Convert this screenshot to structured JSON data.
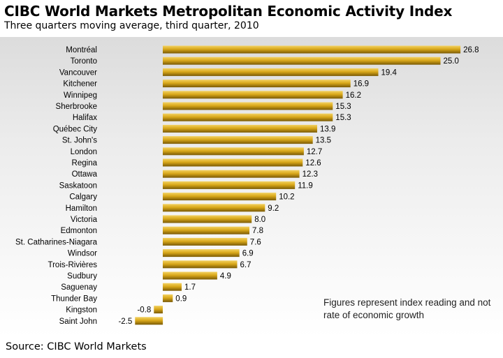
{
  "chart_data": {
    "type": "bar",
    "orientation": "horizontal",
    "title": "CIBC World Markets Metropolitan Economic Activity Index",
    "subtitle": "Three quarters moving average, third quarter, 2010",
    "categories": [
      "Montréal",
      "Toronto",
      "Vancouver",
      "Kitchener",
      "Winnipeg",
      "Sherbrooke",
      "Halifax",
      "Québec City",
      "St. John's",
      "London",
      "Regina",
      "Ottawa",
      "Saskatoon",
      "Calgary",
      "Hamilton",
      "Victoria",
      "Edmonton",
      "St. Catharines-Niagara",
      "Windsor",
      "Trois-Rivières",
      "Sudbury",
      "Saguenay",
      "Thunder Bay",
      "Kingston",
      "Saint John"
    ],
    "values": [
      26.8,
      25.0,
      19.4,
      16.9,
      16.2,
      15.3,
      15.3,
      13.9,
      13.5,
      12.7,
      12.6,
      12.3,
      11.9,
      10.2,
      9.2,
      8.0,
      7.8,
      7.6,
      6.9,
      6.7,
      4.9,
      1.7,
      0.9,
      -0.8,
      -2.5
    ],
    "value_labels": [
      "26.8",
      "25.0",
      "19.4",
      "16.9",
      "16.2",
      "15.3",
      "15.3",
      "13.9",
      "13.5",
      "12.7",
      "12.6",
      "12.3",
      "11.9",
      "10.2",
      "9.2",
      "8.0",
      "7.8",
      "7.6",
      "6.9",
      "6.7",
      "4.9",
      "1.7",
      "0.9",
      "-0.8",
      "-2.5"
    ],
    "xlim": [
      -2.5,
      26.8
    ],
    "grid": false,
    "bar_color": "#d4a017",
    "annotation": "Figures represent index reading and not rate of economic growth",
    "source": "Source: CIBC World Markets"
  }
}
